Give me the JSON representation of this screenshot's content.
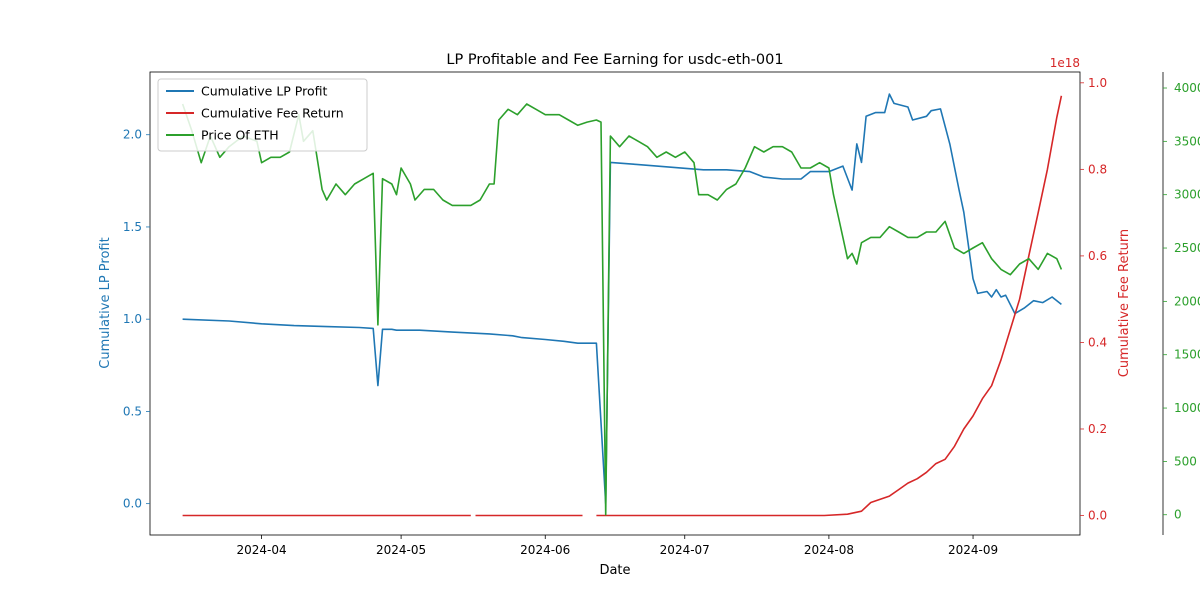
{
  "chart_data": {
    "type": "line",
    "title": "LP Profitable and Fee Earning for usdc-eth-001",
    "xlabel": "Date",
    "x_ticks": [
      "2024-04",
      "2024-05",
      "2024-06",
      "2024-07",
      "2024-08",
      "2024-09"
    ],
    "x_tick_dates": [
      "2024-04-01",
      "2024-05-01",
      "2024-06-01",
      "2024-07-01",
      "2024-08-01",
      "2024-09-01"
    ],
    "xlim": [
      "2024-03-08",
      "2024-09-24"
    ],
    "axes": [
      {
        "id": "left",
        "label": "Cumulative LP Profit",
        "color": "#1f77b4",
        "ylim": [
          -0.17,
          2.34
        ],
        "ticks": [
          "0.0",
          "0.5",
          "1.0",
          "1.5",
          "2.0"
        ],
        "tick_values": [
          0,
          0.5,
          1.0,
          1.5,
          2.0
        ]
      },
      {
        "id": "right1",
        "label": "Cumulative Fee Return",
        "color": "#d62728",
        "ylim": [
          -0.045,
          1.025
        ],
        "ticks": [
          "0.0",
          "0.2",
          "0.4",
          "0.6",
          "0.8",
          "1.0"
        ],
        "tick_values": [
          0,
          0.2,
          0.4,
          0.6,
          0.8,
          1.0
        ],
        "offset_text": "1e18"
      },
      {
        "id": "right2",
        "label": "",
        "color": "#2ca02c",
        "ylim": [
          -190,
          4150
        ],
        "ticks": [
          "0",
          "500",
          "1000",
          "1500",
          "2000",
          "2500",
          "3000",
          "3500",
          "4000"
        ],
        "tick_values": [
          0,
          500,
          1000,
          1500,
          2000,
          2500,
          3000,
          3500,
          4000
        ]
      }
    ],
    "legend": {
      "placement": "upper-left"
    },
    "grid": false,
    "series": [
      {
        "name": "Cumulative LP Profit",
        "axis": "left",
        "color": "#1f77b4",
        "points": [
          [
            "2024-03-15",
            1.0
          ],
          [
            "2024-03-25",
            0.99
          ],
          [
            "2024-04-01",
            0.975
          ],
          [
            "2024-04-08",
            0.965
          ],
          [
            "2024-04-15",
            0.96
          ],
          [
            "2024-04-22",
            0.955
          ],
          [
            "2024-04-25",
            0.95
          ],
          [
            "2024-04-26",
            0.64
          ],
          [
            "2024-04-27",
            0.945
          ],
          [
            "2024-04-29",
            0.945
          ],
          [
            "2024-04-30",
            0.94
          ],
          [
            "2024-05-05",
            0.94
          ],
          [
            "2024-05-12",
            0.93
          ],
          [
            "2024-05-20",
            0.92
          ],
          [
            "2024-05-25",
            0.91
          ],
          [
            "2024-05-27",
            0.9
          ],
          [
            "2024-06-01",
            0.89
          ],
          [
            "2024-06-05",
            0.88
          ],
          [
            "2024-06-08",
            0.87
          ],
          [
            "2024-06-12",
            0.87
          ],
          [
            "2024-06-14",
            0.0
          ],
          [
            "2024-06-15",
            1.85
          ],
          [
            "2024-06-20",
            1.84
          ],
          [
            "2024-06-25",
            1.83
          ],
          [
            "2024-06-30",
            1.82
          ],
          [
            "2024-07-05",
            1.81
          ],
          [
            "2024-07-10",
            1.81
          ],
          [
            "2024-07-15",
            1.8
          ],
          [
            "2024-07-18",
            1.77
          ],
          [
            "2024-07-22",
            1.76
          ],
          [
            "2024-07-26",
            1.76
          ],
          [
            "2024-07-28",
            1.8
          ],
          [
            "2024-08-01",
            1.8
          ],
          [
            "2024-08-04",
            1.83
          ],
          [
            "2024-08-06",
            1.7
          ],
          [
            "2024-08-07",
            1.95
          ],
          [
            "2024-08-08",
            1.85
          ],
          [
            "2024-08-09",
            2.1
          ],
          [
            "2024-08-11",
            2.12
          ],
          [
            "2024-08-13",
            2.12
          ],
          [
            "2024-08-14",
            2.22
          ],
          [
            "2024-08-15",
            2.17
          ],
          [
            "2024-08-18",
            2.15
          ],
          [
            "2024-08-19",
            2.08
          ],
          [
            "2024-08-22",
            2.1
          ],
          [
            "2024-08-23",
            2.13
          ],
          [
            "2024-08-25",
            2.14
          ],
          [
            "2024-08-27",
            1.95
          ],
          [
            "2024-08-29",
            1.7
          ],
          [
            "2024-08-30",
            1.58
          ],
          [
            "2024-09-01",
            1.22
          ],
          [
            "2024-09-02",
            1.14
          ],
          [
            "2024-09-04",
            1.15
          ],
          [
            "2024-09-05",
            1.12
          ],
          [
            "2024-09-06",
            1.16
          ],
          [
            "2024-09-07",
            1.12
          ],
          [
            "2024-09-08",
            1.13
          ],
          [
            "2024-09-10",
            1.03
          ],
          [
            "2024-09-12",
            1.06
          ],
          [
            "2024-09-14",
            1.1
          ],
          [
            "2024-09-16",
            1.09
          ],
          [
            "2024-09-18",
            1.12
          ],
          [
            "2024-09-20",
            1.08
          ]
        ]
      },
      {
        "name": "Cumulative Fee Return",
        "axis": "right1",
        "color": "#d62728",
        "segments": [
          [
            [
              "2024-03-15",
              0.0
            ],
            [
              "2024-05-16",
              0.0
            ]
          ],
          [
            [
              "2024-05-17",
              0.0
            ],
            [
              "2024-06-09",
              0.0
            ]
          ],
          [
            [
              "2024-06-12",
              0.0
            ],
            [
              "2024-07-31",
              0.0
            ],
            [
              "2024-08-05",
              0.003
            ],
            [
              "2024-08-08",
              0.01
            ],
            [
              "2024-08-10",
              0.03
            ],
            [
              "2024-08-14",
              0.045
            ],
            [
              "2024-08-16",
              0.06
            ],
            [
              "2024-08-18",
              0.075
            ],
            [
              "2024-08-20",
              0.085
            ],
            [
              "2024-08-22",
              0.1
            ],
            [
              "2024-08-24",
              0.12
            ],
            [
              "2024-08-26",
              0.13
            ],
            [
              "2024-08-28",
              0.16
            ],
            [
              "2024-08-30",
              0.2
            ],
            [
              "2024-09-01",
              0.23
            ],
            [
              "2024-09-03",
              0.27
            ],
            [
              "2024-09-05",
              0.3
            ],
            [
              "2024-09-07",
              0.36
            ],
            [
              "2024-09-09",
              0.43
            ],
            [
              "2024-09-11",
              0.5
            ],
            [
              "2024-09-13",
              0.6
            ],
            [
              "2024-09-15",
              0.7
            ],
            [
              "2024-09-17",
              0.8
            ],
            [
              "2024-09-19",
              0.92
            ],
            [
              "2024-09-20",
              0.97
            ]
          ]
        ]
      },
      {
        "name": "Price Of ETH",
        "axis": "right2",
        "color": "#2ca02c",
        "points": [
          [
            "2024-03-15",
            3850
          ],
          [
            "2024-03-17",
            3600
          ],
          [
            "2024-03-19",
            3300
          ],
          [
            "2024-03-21",
            3550
          ],
          [
            "2024-03-23",
            3350
          ],
          [
            "2024-03-25",
            3450
          ],
          [
            "2024-03-28",
            3550
          ],
          [
            "2024-03-31",
            3500
          ],
          [
            "2024-04-01",
            3300
          ],
          [
            "2024-04-03",
            3350
          ],
          [
            "2024-04-05",
            3350
          ],
          [
            "2024-04-07",
            3400
          ],
          [
            "2024-04-09",
            3750
          ],
          [
            "2024-04-10",
            3500
          ],
          [
            "2024-04-12",
            3600
          ],
          [
            "2024-04-14",
            3050
          ],
          [
            "2024-04-15",
            2950
          ],
          [
            "2024-04-17",
            3100
          ],
          [
            "2024-04-19",
            3000
          ],
          [
            "2024-04-21",
            3100
          ],
          [
            "2024-04-23",
            3150
          ],
          [
            "2024-04-25",
            3200
          ],
          [
            "2024-04-26",
            1780
          ],
          [
            "2024-04-27",
            3150
          ],
          [
            "2024-04-29",
            3100
          ],
          [
            "2024-04-30",
            3000
          ],
          [
            "2024-05-01",
            3250
          ],
          [
            "2024-05-03",
            3100
          ],
          [
            "2024-05-04",
            2950
          ],
          [
            "2024-05-06",
            3050
          ],
          [
            "2024-05-08",
            3050
          ],
          [
            "2024-05-10",
            2950
          ],
          [
            "2024-05-12",
            2900
          ],
          [
            "2024-05-14",
            2900
          ],
          [
            "2024-05-16",
            2900
          ],
          [
            "2024-05-18",
            2950
          ],
          [
            "2024-05-20",
            3100
          ],
          [
            "2024-05-21",
            3100
          ],
          [
            "2024-05-22",
            3700
          ],
          [
            "2024-05-24",
            3800
          ],
          [
            "2024-05-26",
            3750
          ],
          [
            "2024-05-28",
            3850
          ],
          [
            "2024-05-30",
            3800
          ],
          [
            "2024-06-01",
            3750
          ],
          [
            "2024-06-04",
            3750
          ],
          [
            "2024-06-06",
            3700
          ],
          [
            "2024-06-08",
            3650
          ],
          [
            "2024-06-10",
            3680
          ],
          [
            "2024-06-12",
            3700
          ],
          [
            "2024-06-13",
            3680
          ],
          [
            "2024-06-14",
            0
          ],
          [
            "2024-06-15",
            3550
          ],
          [
            "2024-06-17",
            3450
          ],
          [
            "2024-06-19",
            3550
          ],
          [
            "2024-06-21",
            3500
          ],
          [
            "2024-06-23",
            3450
          ],
          [
            "2024-06-25",
            3350
          ],
          [
            "2024-06-27",
            3400
          ],
          [
            "2024-06-29",
            3350
          ],
          [
            "2024-07-01",
            3400
          ],
          [
            "2024-07-03",
            3300
          ],
          [
            "2024-07-04",
            3000
          ],
          [
            "2024-07-06",
            3000
          ],
          [
            "2024-07-08",
            2950
          ],
          [
            "2024-07-10",
            3050
          ],
          [
            "2024-07-12",
            3100
          ],
          [
            "2024-07-14",
            3250
          ],
          [
            "2024-07-16",
            3450
          ],
          [
            "2024-07-18",
            3400
          ],
          [
            "2024-07-20",
            3450
          ],
          [
            "2024-07-22",
            3450
          ],
          [
            "2024-07-24",
            3400
          ],
          [
            "2024-07-26",
            3250
          ],
          [
            "2024-07-28",
            3250
          ],
          [
            "2024-07-30",
            3300
          ],
          [
            "2024-08-01",
            3250
          ],
          [
            "2024-08-02",
            3000
          ],
          [
            "2024-08-03",
            2800
          ],
          [
            "2024-08-04",
            2600
          ],
          [
            "2024-08-05",
            2400
          ],
          [
            "2024-08-06",
            2450
          ],
          [
            "2024-08-07",
            2350
          ],
          [
            "2024-08-08",
            2550
          ],
          [
            "2024-08-10",
            2600
          ],
          [
            "2024-08-12",
            2600
          ],
          [
            "2024-08-14",
            2700
          ],
          [
            "2024-08-16",
            2650
          ],
          [
            "2024-08-18",
            2600
          ],
          [
            "2024-08-20",
            2600
          ],
          [
            "2024-08-22",
            2650
          ],
          [
            "2024-08-24",
            2650
          ],
          [
            "2024-08-26",
            2750
          ],
          [
            "2024-08-28",
            2500
          ],
          [
            "2024-08-30",
            2450
          ],
          [
            "2024-09-01",
            2500
          ],
          [
            "2024-09-03",
            2550
          ],
          [
            "2024-09-05",
            2400
          ],
          [
            "2024-09-07",
            2300
          ],
          [
            "2024-09-09",
            2250
          ],
          [
            "2024-09-11",
            2350
          ],
          [
            "2024-09-13",
            2400
          ],
          [
            "2024-09-15",
            2300
          ],
          [
            "2024-09-17",
            2450
          ],
          [
            "2024-09-19",
            2400
          ],
          [
            "2024-09-20",
            2300
          ]
        ]
      }
    ]
  }
}
